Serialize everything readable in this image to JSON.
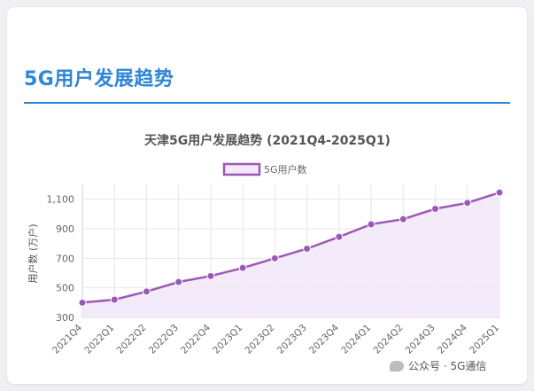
{
  "section_title": "5G用户发展趋势",
  "watermark": "公众号 · 5G通信",
  "colors": {
    "accent": "#2f86d8",
    "series_line": "#9b59b6",
    "series_fill": "#f3e9fa"
  },
  "chart_data": {
    "type": "area",
    "title": "天津5G用户发展趋势 (2021Q4-2025Q1)",
    "xlabel": "",
    "ylabel": "用户数 (万户)",
    "categories": [
      "2021Q4",
      "2022Q1",
      "2022Q2",
      "2022Q3",
      "2022Q4",
      "2023Q1",
      "2023Q2",
      "2023Q3",
      "2023Q4",
      "2024Q1",
      "2024Q2",
      "2024Q3",
      "2024Q4",
      "2025Q1"
    ],
    "series": [
      {
        "name": "5G用户数",
        "values": [
          400,
          420,
          475,
          540,
          580,
          635,
          700,
          765,
          845,
          930,
          965,
          1035,
          1075,
          1145
        ]
      }
    ],
    "ylim": [
      300,
      1200
    ],
    "yticks": [
      300,
      500,
      700,
      900,
      1100
    ],
    "ytick_labels": [
      "300",
      "500",
      "700",
      "900",
      "1,100"
    ],
    "grid": true,
    "legend": "top-center"
  }
}
